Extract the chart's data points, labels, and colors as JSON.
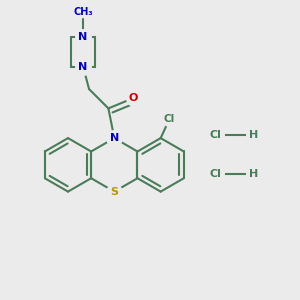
{
  "background_color": "#ebebeb",
  "bond_color": "#4a7c59",
  "bond_width": 1.5,
  "N_color": "#0000cc",
  "O_color": "#cc0000",
  "S_color": "#b8960c",
  "Cl_color": "#4a7c59",
  "fig_width": 3.0,
  "fig_height": 3.0,
  "dpi": 100,
  "xlim": [
    0,
    10
  ],
  "ylim": [
    0,
    10
  ]
}
